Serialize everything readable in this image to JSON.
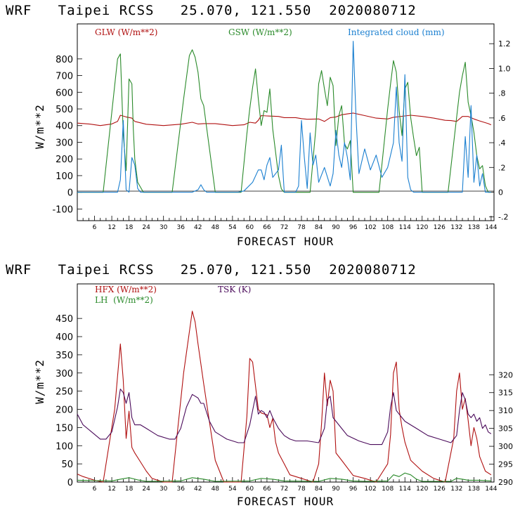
{
  "chart_data": [
    {
      "type": "line",
      "title": "WRF   Taipei RCSS   25.070, 121.550  2020080712",
      "xlabel": "FORECAST HOUR",
      "ylabel": "W/m**2",
      "xlim": [
        0,
        145
      ],
      "ylim": [
        -170,
        1010
      ],
      "y2lim": [
        -0.23,
        1.36
      ],
      "xticks": [
        6,
        12,
        18,
        24,
        30,
        36,
        42,
        48,
        54,
        60,
        66,
        72,
        78,
        84,
        90,
        96,
        102,
        108,
        114,
        120,
        126,
        132,
        138,
        144
      ],
      "yticks": [
        -100,
        0,
        100,
        200,
        300,
        400,
        500,
        600,
        700,
        800
      ],
      "y2ticks": [
        "-.2",
        "0",
        ".2",
        ".4",
        ".6",
        ".8",
        "1.0",
        "1.2"
      ],
      "y2tick_values": [
        -0.2,
        0,
        0.2,
        0.4,
        0.6,
        0.8,
        1.0,
        1.2
      ],
      "legend": [
        "GLW (W/m**2)",
        "GSW (W/m**2)",
        "Integrated cloud (mm)"
      ],
      "colors": {
        "glw": "#b01010",
        "gsw": "#2a8a2a",
        "cloud": "#1a7fd0"
      },
      "series": [
        {
          "name": "GLW (W/m**2)",
          "axis": "left",
          "x": [
            0,
            4,
            8,
            12,
            14,
            15,
            17,
            19,
            20,
            24,
            30,
            36,
            40,
            42,
            44,
            48,
            54,
            58,
            60,
            62,
            63,
            64,
            66,
            70,
            72,
            76,
            78,
            80,
            84,
            86,
            88,
            90,
            92,
            94,
            96,
            100,
            104,
            108,
            110,
            114,
            116,
            120,
            124,
            128,
            130,
            132,
            134,
            136,
            138,
            140,
            143,
            144
          ],
          "values": [
            415,
            410,
            400,
            410,
            425,
            462,
            452,
            445,
            425,
            408,
            400,
            408,
            420,
            410,
            412,
            412,
            400,
            405,
            420,
            415,
            432,
            460,
            458,
            455,
            448,
            448,
            442,
            438,
            440,
            425,
            448,
            452,
            465,
            470,
            475,
            460,
            445,
            440,
            450,
            458,
            462,
            455,
            445,
            432,
            430,
            425,
            455,
            455,
            440,
            428,
            412,
            405
          ]
        },
        {
          "name": "GSW (W/m**2)",
          "axis": "left",
          "x": [
            0,
            9,
            14,
            15,
            16,
            17,
            18,
            19,
            19.5,
            20,
            21,
            22,
            23,
            24,
            33,
            37,
            39,
            40,
            41,
            42,
            43,
            44,
            48,
            57,
            59,
            60,
            61,
            62,
            63,
            64,
            65,
            66,
            67,
            68,
            69,
            70,
            71,
            72,
            81,
            83,
            84,
            85,
            86,
            87,
            88,
            89,
            90,
            91,
            92,
            93,
            94,
            95,
            96,
            105,
            108,
            109,
            110,
            111,
            112,
            113,
            114,
            115,
            116,
            117,
            118,
            119,
            120,
            129,
            133,
            134,
            135,
            136,
            137,
            138,
            139,
            140,
            141,
            142,
            143,
            144
          ],
          "values": [
            0,
            0,
            800,
            830,
            350,
            130,
            680,
            650,
            380,
            200,
            60,
            30,
            0,
            0,
            0,
            560,
            820,
            855,
            810,
            720,
            560,
            520,
            0,
            0,
            350,
            500,
            630,
            740,
            560,
            400,
            490,
            480,
            620,
            380,
            240,
            100,
            20,
            0,
            0,
            380,
            650,
            730,
            620,
            520,
            690,
            640,
            280,
            460,
            520,
            290,
            260,
            310,
            0,
            0,
            500,
            650,
            790,
            720,
            490,
            340,
            620,
            660,
            450,
            330,
            220,
            270,
            0,
            0,
            600,
            700,
            780,
            540,
            460,
            360,
            220,
            140,
            160,
            40,
            0,
            0
          ]
        },
        {
          "name": "Integrated cloud (mm)",
          "axis": "right",
          "x": [
            0,
            14,
            15,
            16,
            17,
            18,
            19,
            20,
            21,
            22,
            24,
            40,
            42,
            43,
            44,
            45,
            46,
            47,
            48,
            56,
            58,
            61,
            63,
            64,
            65,
            66,
            67,
            68,
            70,
            71,
            72,
            75,
            76,
            77,
            78,
            79,
            80,
            81,
            82,
            83,
            84,
            86,
            88,
            89,
            90,
            91,
            92,
            93,
            94,
            95,
            96,
            97,
            98,
            100,
            102,
            104,
            106,
            108,
            110,
            111,
            112,
            113,
            114,
            115,
            116,
            117,
            118,
            120,
            124,
            128,
            130,
            134,
            135,
            136,
            137,
            138,
            139,
            140,
            141,
            142,
            143,
            144
          ],
          "values": [
            0,
            0,
            0.1,
            0.58,
            0.02,
            0,
            0.28,
            0.22,
            0.03,
            0,
            0,
            0,
            0.02,
            0.06,
            0.02,
            0,
            0,
            0,
            0,
            0,
            0.01,
            0.08,
            0.18,
            0.18,
            0.1,
            0.22,
            0.28,
            0.12,
            0.18,
            0.38,
            0,
            0,
            0,
            0.05,
            0.58,
            0.28,
            0.03,
            0.48,
            0.22,
            0.3,
            0.08,
            0.2,
            0.05,
            0.15,
            0.5,
            0.3,
            0.2,
            0.4,
            0.28,
            0.1,
            1.22,
            0.6,
            0.15,
            0.35,
            0.18,
            0.3,
            0.12,
            0.2,
            0.4,
            0.85,
            0.4,
            0.25,
            0.95,
            0.12,
            0.02,
            0,
            0,
            0,
            0,
            0,
            0,
            0,
            0.45,
            0.12,
            0.7,
            0.08,
            0.3,
            0.05,
            0.15,
            0,
            0,
            0
          ]
        }
      ]
    },
    {
      "type": "line",
      "title": "WRF   Taipei RCSS   25.070, 121.550  2020080712",
      "xlabel": "FORECAST HOUR",
      "ylabel": "W/m**2",
      "xlim": [
        0,
        145
      ],
      "ylim": [
        0,
        545
      ],
      "y2lim": [
        290,
        345.4
      ],
      "xticks": [
        6,
        12,
        18,
        24,
        30,
        36,
        42,
        48,
        54,
        60,
        66,
        72,
        78,
        84,
        90,
        96,
        102,
        108,
        114,
        120,
        126,
        132,
        138,
        144
      ],
      "yticks": [
        0,
        50,
        100,
        150,
        200,
        250,
        300,
        350,
        400,
        450
      ],
      "y2ticks": [
        "290",
        "295",
        "300",
        "305",
        "310",
        "315",
        "320"
      ],
      "y2tick_values": [
        290,
        295,
        300,
        305,
        310,
        315,
        320
      ],
      "legend": [
        "HFX (W/m**2)",
        "LH  (W/m**2)",
        "TSK (K)"
      ],
      "colors": {
        "hfx": "#b01010",
        "lh": "#2a8a2a",
        "tsk": "#4a0a5a"
      },
      "series": [
        {
          "name": "HFX (W/m**2)",
          "axis": "left",
          "x": [
            0,
            2,
            6,
            9,
            13,
            15,
            16,
            17,
            18,
            19,
            20,
            22,
            24,
            26,
            30,
            33,
            37,
            40,
            41,
            42,
            44,
            48,
            51,
            57,
            59,
            60,
            61,
            63,
            64,
            66,
            67,
            68,
            69,
            70,
            72,
            74,
            78,
            82,
            84,
            85,
            86,
            87,
            88,
            89,
            90,
            92,
            96,
            100,
            104,
            108,
            109,
            110,
            111,
            112,
            113,
            114,
            116,
            120,
            124,
            128,
            131,
            132,
            133,
            134,
            135,
            136,
            137,
            138,
            139,
            140,
            141,
            142,
            144
          ],
          "values": [
            22,
            15,
            5,
            0,
            200,
            380,
            280,
            120,
            195,
            95,
            80,
            55,
            30,
            10,
            0,
            0,
            300,
            470,
            440,
            380,
            270,
            60,
            0,
            0,
            180,
            340,
            330,
            200,
            190,
            185,
            150,
            175,
            110,
            80,
            50,
            20,
            10,
            0,
            50,
            160,
            300,
            210,
            280,
            250,
            80,
            60,
            18,
            10,
            0,
            50,
            130,
            300,
            330,
            200,
            150,
            110,
            60,
            30,
            10,
            0,
            120,
            250,
            300,
            200,
            230,
            170,
            100,
            150,
            120,
            70,
            50,
            30,
            20
          ]
        },
        {
          "name": "LH  (W/m**2)",
          "axis": "left",
          "x": [
            0,
            12,
            15,
            18,
            21,
            24,
            36,
            40,
            44,
            48,
            60,
            64,
            68,
            72,
            84,
            88,
            92,
            96,
            100,
            108,
            110,
            112,
            114,
            116,
            118,
            120,
            130,
            132,
            134,
            136,
            140,
            144
          ],
          "values": [
            5,
            3,
            8,
            12,
            6,
            2,
            3,
            12,
            8,
            2,
            3,
            10,
            8,
            3,
            2,
            10,
            8,
            3,
            2,
            3,
            20,
            15,
            25,
            20,
            8,
            2,
            2,
            10,
            8,
            5,
            5,
            3
          ]
        },
        {
          "name": "TSK (K)",
          "axis": "right",
          "x": [
            0,
            2,
            5,
            8,
            10,
            12,
            14,
            15,
            16,
            17,
            18,
            19,
            20,
            22,
            24,
            26,
            28,
            32,
            34,
            36,
            38,
            40,
            41,
            42,
            43,
            44,
            46,
            48,
            50,
            52,
            56,
            58,
            60,
            62,
            63,
            64,
            65,
            66,
            67,
            68,
            69,
            70,
            72,
            74,
            76,
            80,
            84,
            86,
            87,
            88,
            89,
            90,
            92,
            94,
            98,
            102,
            106,
            108,
            109,
            110,
            111,
            112,
            113,
            114,
            116,
            118,
            122,
            126,
            130,
            132,
            133,
            134,
            135,
            136,
            137,
            138,
            139,
            140,
            141,
            142,
            143,
            144
          ],
          "values": [
            309,
            306,
            304,
            302,
            302,
            304,
            311,
            316,
            315,
            312,
            315,
            308,
            306,
            306,
            305,
            304,
            303,
            302,
            302,
            305,
            311,
            314.5,
            314,
            313.5,
            312,
            312,
            307,
            304,
            303,
            302,
            301,
            301,
            306,
            314,
            309,
            310,
            309.5,
            308,
            310,
            308,
            306.5,
            305,
            303,
            302,
            301.5,
            301.5,
            301,
            305,
            313,
            314,
            308,
            307,
            305,
            303,
            301.5,
            300.5,
            300.5,
            304,
            311,
            315,
            310,
            309,
            308,
            307,
            306,
            305,
            303,
            302,
            301,
            303,
            310,
            315,
            313,
            309,
            308,
            309,
            307,
            308,
            305,
            306,
            304,
            303.5
          ]
        }
      ]
    }
  ]
}
